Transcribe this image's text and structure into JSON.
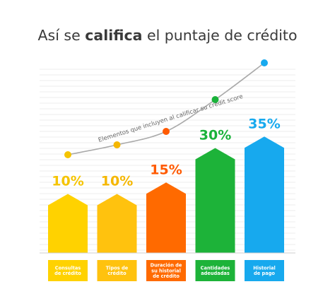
{
  "title": {
    "prefix": "Así se ",
    "bold": "califica",
    "suffix": " el puntaje de crédito"
  },
  "curve_label": "Elementos que incluyen al calificar su credit score",
  "chart_data": {
    "type": "bar",
    "categories": [
      [
        "Consultas",
        "de crédito"
      ],
      [
        "Tipos de",
        "crédito"
      ],
      [
        "Duración de",
        "su historial",
        "de crédito"
      ],
      [
        "Cantidades",
        "adeudadas"
      ],
      [
        "Historial",
        "de pago"
      ]
    ],
    "values": [
      10,
      10,
      15,
      30,
      35
    ],
    "value_labels": [
      "10%",
      "10%",
      "15%",
      "30%",
      "35%"
    ],
    "colors": [
      "#ffd200",
      "#ffc20e",
      "#ff6a00",
      "#1db339",
      "#17a9ee"
    ],
    "label_colors": [
      "#f5c400",
      "#f5b700",
      "#ff5a00",
      "#19b23a",
      "#17a9ee"
    ],
    "ylim": [
      0,
      35
    ],
    "grid": true
  }
}
